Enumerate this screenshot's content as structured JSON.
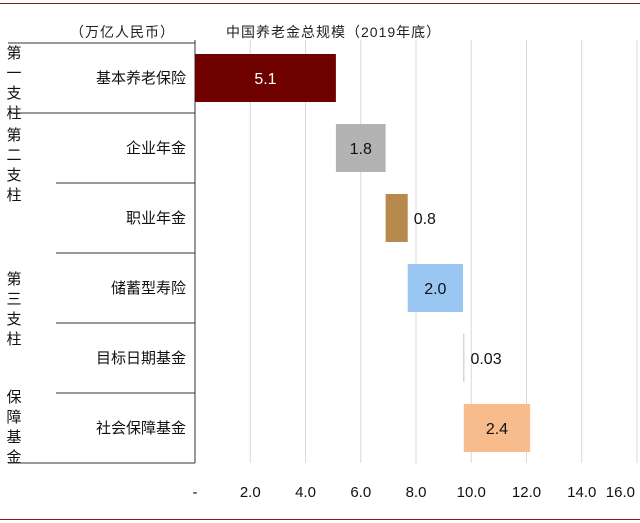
{
  "unit_label": "（万亿人民币）",
  "chart_data": {
    "type": "bar",
    "subtype": "waterfall-horizontal",
    "title": "中国养老金总规模（2019年底）",
    "categories": [
      "基本养老保险",
      "企业年金",
      "职业年金",
      "储蓄型寿险",
      "目标日期基金",
      "社会保障基金"
    ],
    "values": [
      5.1,
      1.8,
      0.8,
      2.0,
      0.03,
      2.4
    ],
    "value_labels": [
      "5.1",
      "1.8",
      "0.8",
      "2.0",
      "0.03",
      "2.4"
    ],
    "colors": [
      "#6e0000",
      "#b3b3b3",
      "#b8894d",
      "#99c7f2",
      "#d8d8d8",
      "#f8bb8c"
    ],
    "label_color": [
      "#ffffff",
      "#111111",
      "#111111",
      "#111111",
      "#111111",
      "#111111"
    ],
    "xlim": [
      0,
      16
    ],
    "xticks": [
      "-",
      "2.0",
      "4.0",
      "6.0",
      "8.0",
      "10.0",
      "12.0",
      "14.0",
      "16.0"
    ],
    "grid": true,
    "groups": [
      {
        "label": "第一支柱",
        "rows": [
          0
        ]
      },
      {
        "label": "第二支柱",
        "rows": [
          1,
          2
        ]
      },
      {
        "label": "第三支柱",
        "rows": [
          3,
          4
        ]
      },
      {
        "label": "保障基金",
        "rows": [
          5
        ]
      }
    ]
  }
}
